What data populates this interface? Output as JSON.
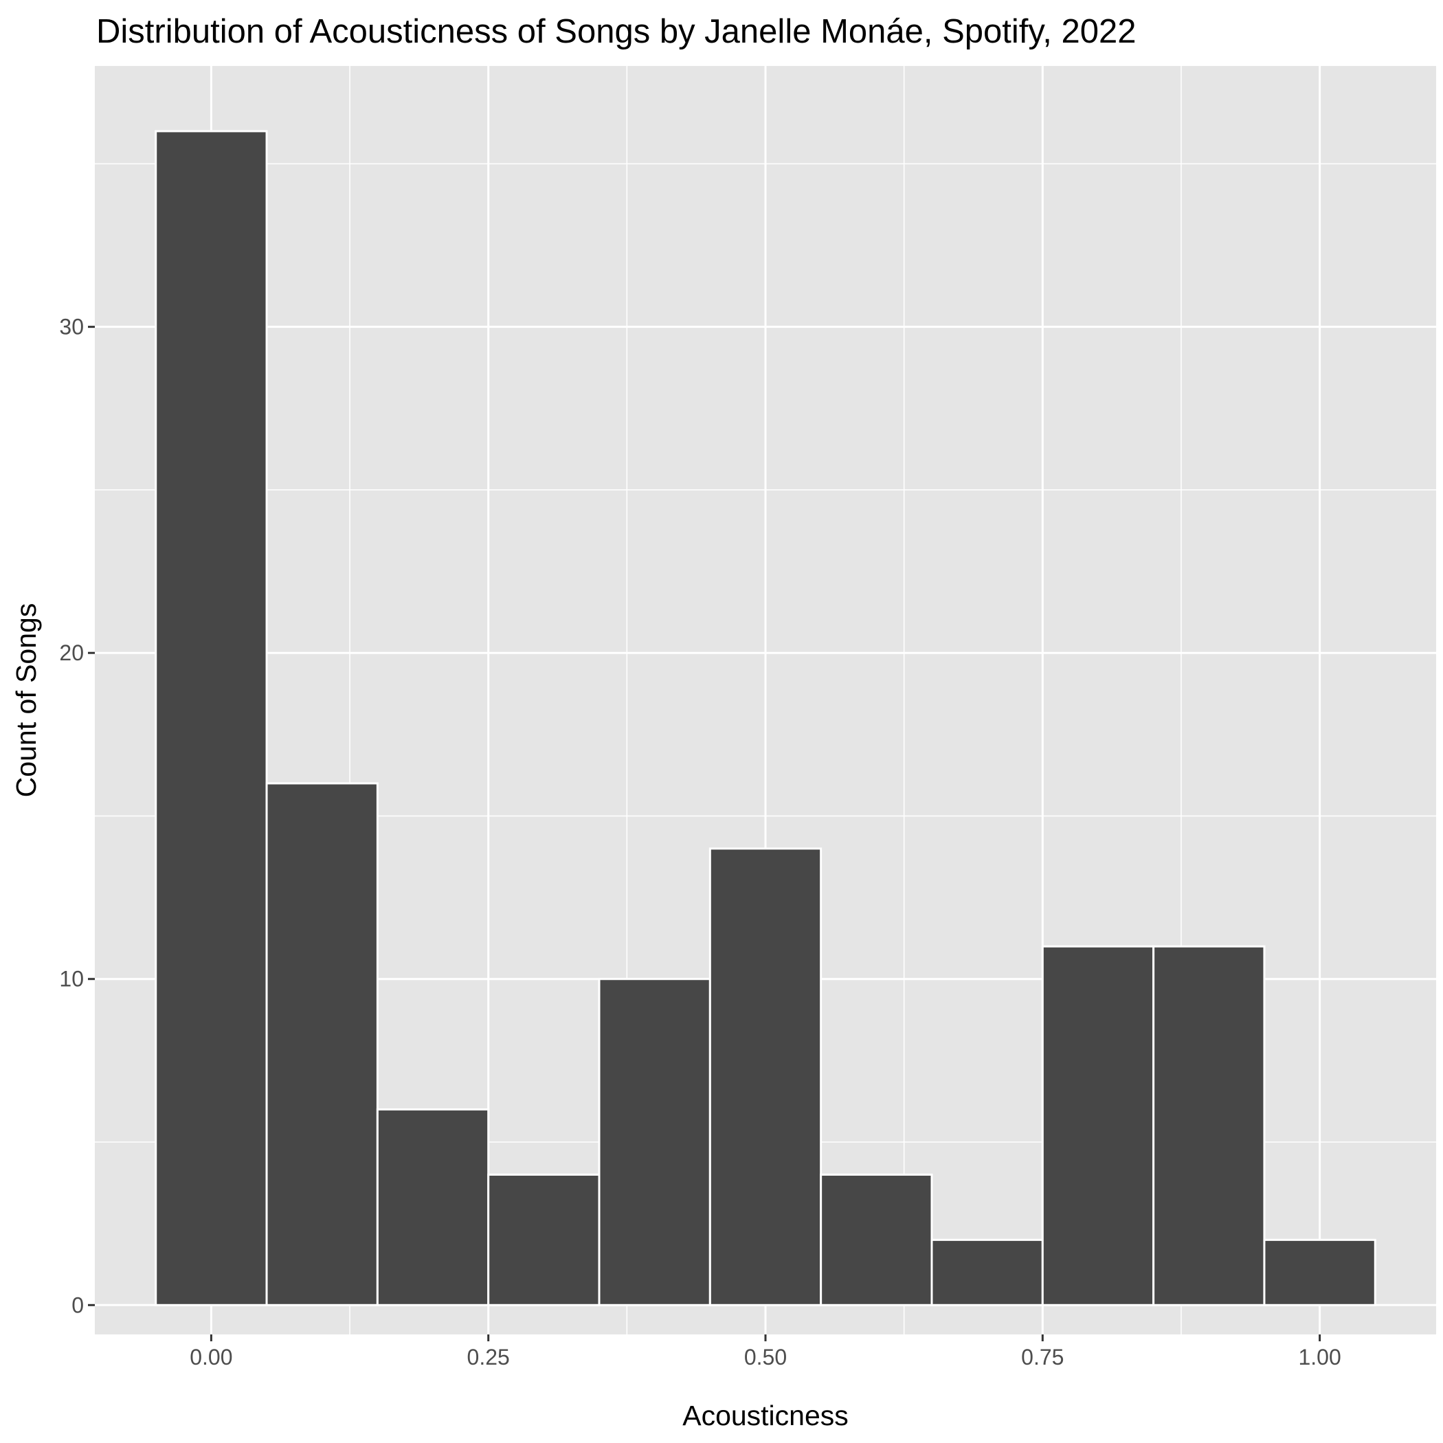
{
  "chart_data": {
    "type": "bar",
    "title": "Distribution of Acousticness of Songs by Janelle Monáe, Spotify, 2022",
    "xlabel": "Acousticness",
    "ylabel": "Count of Songs",
    "bin_width": 0.1,
    "bins": [
      {
        "start": -0.05,
        "end": 0.05,
        "count": 36
      },
      {
        "start": 0.05,
        "end": 0.15,
        "count": 16
      },
      {
        "start": 0.15,
        "end": 0.25,
        "count": 6
      },
      {
        "start": 0.25,
        "end": 0.35,
        "count": 4
      },
      {
        "start": 0.35,
        "end": 0.45,
        "count": 10
      },
      {
        "start": 0.45,
        "end": 0.55,
        "count": 14
      },
      {
        "start": 0.55,
        "end": 0.65,
        "count": 4
      },
      {
        "start": 0.65,
        "end": 0.75,
        "count": 2
      },
      {
        "start": 0.75,
        "end": 0.85,
        "count": 11
      },
      {
        "start": 0.85,
        "end": 0.95,
        "count": 11
      },
      {
        "start": 0.95,
        "end": 1.05,
        "count": 2
      }
    ],
    "xlim": [
      -0.105,
      1.105
    ],
    "ylim": [
      -0.9,
      38.0
    ],
    "x_ticks": [
      0,
      0.25,
      0.5,
      0.75,
      1.0
    ],
    "x_tick_labels": [
      "0.00",
      "0.25",
      "0.50",
      "0.75",
      "1.00"
    ],
    "y_ticks": [
      0,
      10,
      20,
      30
    ],
    "y_tick_labels": [
      "0",
      "10",
      "20",
      "30"
    ],
    "grid": true,
    "bar_color": "#474747",
    "bar_edge_color": "#ffffff",
    "panel_color": "#e5e5e5"
  }
}
